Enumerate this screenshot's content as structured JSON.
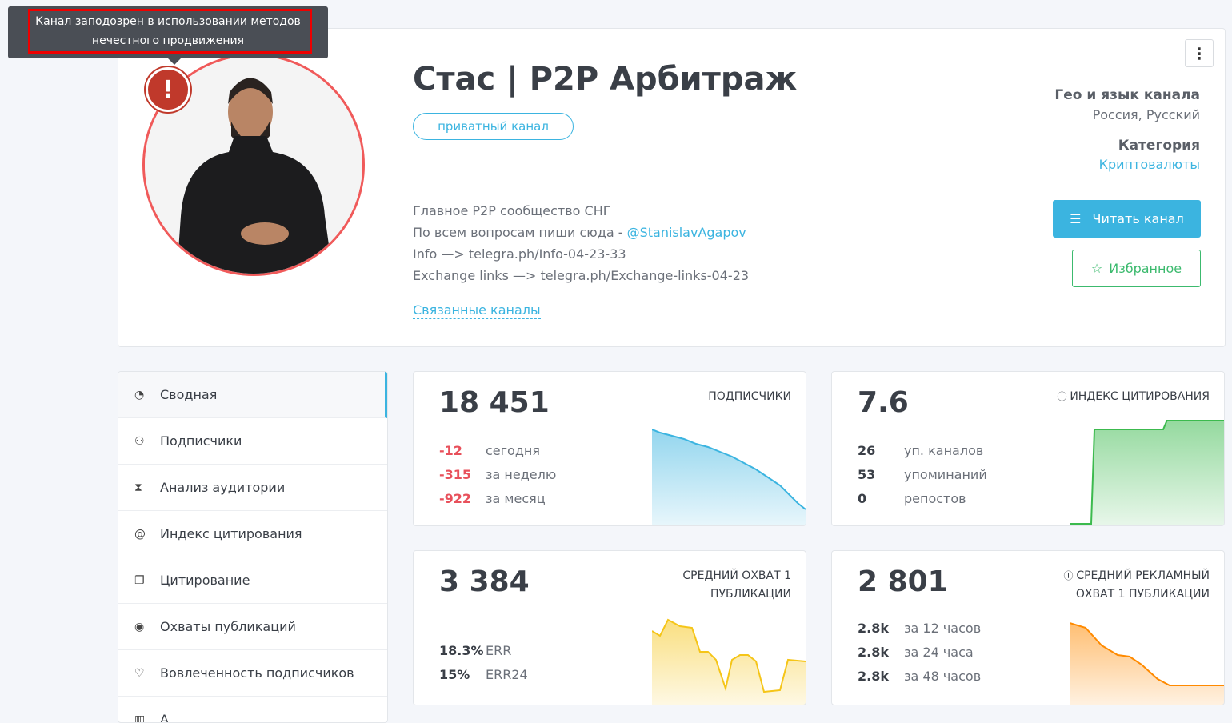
{
  "tooltip": {
    "text": "Канал заподозрен в использовании методов нечестного продвижения"
  },
  "channel": {
    "title": "Стас | P2P Арбитраж",
    "type_badge": "приватный канал",
    "description": [
      "Главное P2P сообщество СНГ",
      "По всем вопросам пиши сюда - ",
      "Info —> telegra.ph/Info-04-23-33",
      "Exchange links —> telegra.ph/Exchange-links-04-23"
    ],
    "contact": "@StanislavAgapov",
    "related_link": "Связанные каналы",
    "geo_label": "Гео и язык канала",
    "geo_value": "Россия, Русский",
    "category_label": "Категория",
    "category_value": "Криптовалюты",
    "read_button": "Читать канал",
    "favorite_button": "Избранное",
    "menu_icon": "⋮"
  },
  "sidebar": {
    "items": [
      {
        "label": "Сводная",
        "icon": "dashboard-icon",
        "active": true
      },
      {
        "label": "Подписчики",
        "icon": "users-icon"
      },
      {
        "label": "Анализ аудитории",
        "icon": "hourglass-icon"
      },
      {
        "label": "Индекс цитирования",
        "icon": "at-icon"
      },
      {
        "label": "Цитирование",
        "icon": "quote-icon"
      },
      {
        "label": "Охваты публикаций",
        "icon": "eye-icon"
      },
      {
        "label": "Вовлеченность подписчиков",
        "icon": "heart-icon"
      },
      {
        "label": "А",
        "icon": "chart-icon"
      }
    ]
  },
  "cards": [
    {
      "value": "18 451",
      "title": "подписчики",
      "rows": [
        {
          "n": "-12",
          "t": "сегодня"
        },
        {
          "n": "-315",
          "t": "за неделю"
        },
        {
          "n": "-922",
          "t": "за месяц"
        }
      ],
      "color": "#3bb4e0"
    },
    {
      "value": "7.6",
      "title": "индекс цитирования",
      "rows": [
        {
          "n": "26",
          "t": "уп. каналов"
        },
        {
          "n": "53",
          "t": "упоминаний"
        },
        {
          "n": "0",
          "t": "репостов"
        }
      ],
      "color": "#3cba4e"
    },
    {
      "value": "3 384",
      "title": "средний охват 1 публикации",
      "rows": [
        {
          "n": "18.3%",
          "t": "ERR"
        },
        {
          "n": "15%",
          "t": "ERR24"
        }
      ],
      "color": "#f5c518"
    },
    {
      "value": "2 801",
      "title": "средний рекламный охват 1 публикации",
      "rows": [
        {
          "n": "2.8k",
          "t": "за 12 часов"
        },
        {
          "n": "2.8k",
          "t": "за 24 часа"
        },
        {
          "n": "2.8k",
          "t": "за 48 часов"
        }
      ],
      "color": "#ff8a00"
    }
  ],
  "colors": {
    "accent": "#3bb4e0",
    "danger": "#e8505b",
    "success": "#3cba6e"
  }
}
